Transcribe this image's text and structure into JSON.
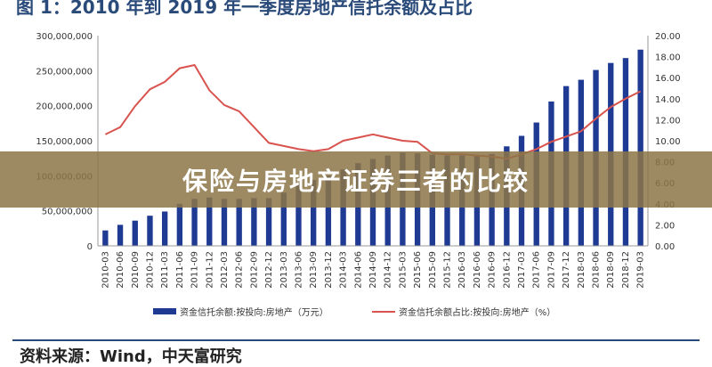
{
  "figure_title": "图 1：2010 年到 2019 年一季度房地产信托余额及占比",
  "banner": {
    "text": "保险与房地产证券三者的比较"
  },
  "source_note": "资料来源：Wind，中天富研究",
  "colors": {
    "bar": "#1f3a93",
    "line": "#d9534f",
    "banner": "#8c7646"
  },
  "chart_data": {
    "type": "bar",
    "categories": [
      "2010-03",
      "2010-06",
      "2010-09",
      "2010-12",
      "2011-03",
      "2011-06",
      "2011-09",
      "2011-12",
      "2012-03",
      "2012-06",
      "2012-09",
      "2012-12",
      "2013-03",
      "2013-06",
      "2013-09",
      "2013-12",
      "2014-03",
      "2014-06",
      "2014-09",
      "2014-12",
      "2015-03",
      "2015-06",
      "2015-09",
      "2015-12",
      "2016-03",
      "2016-06",
      "2016-09",
      "2016-12",
      "2017-03",
      "2017-06",
      "2017-09",
      "2017-12",
      "2018-03",
      "2018-06",
      "2018-09",
      "2018-12",
      "2019-03"
    ],
    "series": [
      {
        "name": "资金信托余额:按投向:房地产（万元）",
        "type": "bar",
        "axis": "left",
        "values": [
          22000000,
          30000000,
          36000000,
          43000000,
          49000000,
          60000000,
          67000000,
          69000000,
          67000000,
          67000000,
          68000000,
          68000000,
          76000000,
          88000000,
          94000000,
          100000000,
          109000000,
          118000000,
          124000000,
          129000000,
          133000000,
          132000000,
          130000000,
          129000000,
          129000000,
          129000000,
          131000000,
          142000000,
          157000000,
          176000000,
          206000000,
          228000000,
          237000000,
          251000000,
          261000000,
          268000000,
          280000000
        ]
      },
      {
        "name": "资金信托余额占比:按投向:房地产（%）",
        "type": "line",
        "axis": "right",
        "values": [
          10.6,
          11.3,
          13.3,
          14.9,
          15.6,
          16.9,
          17.2,
          14.8,
          13.4,
          12.8,
          11.3,
          9.8,
          9.5,
          9.2,
          9.0,
          9.2,
          10.0,
          10.3,
          10.6,
          10.3,
          10.0,
          9.9,
          8.8,
          8.7,
          8.7,
          8.6,
          8.5,
          8.3,
          8.7,
          9.2,
          9.9,
          10.4,
          10.9,
          12.1,
          13.2,
          14.0,
          14.7
        ]
      }
    ],
    "left_axis": {
      "ticks": [
        "0",
        "50,000,000",
        "100,000,000",
        "150,000,000",
        "200,000,000",
        "250,000,000",
        "300,000,000"
      ],
      "ylim": [
        0,
        300000000
      ]
    },
    "right_axis": {
      "ticks": [
        "0.00",
        "2.00",
        "4.00",
        "6.00",
        "8.00",
        "10.00",
        "12.00",
        "14.00",
        "16.00",
        "18.00",
        "20.00"
      ],
      "ylim": [
        0,
        20
      ]
    },
    "legend": {
      "position": "bottom"
    }
  }
}
